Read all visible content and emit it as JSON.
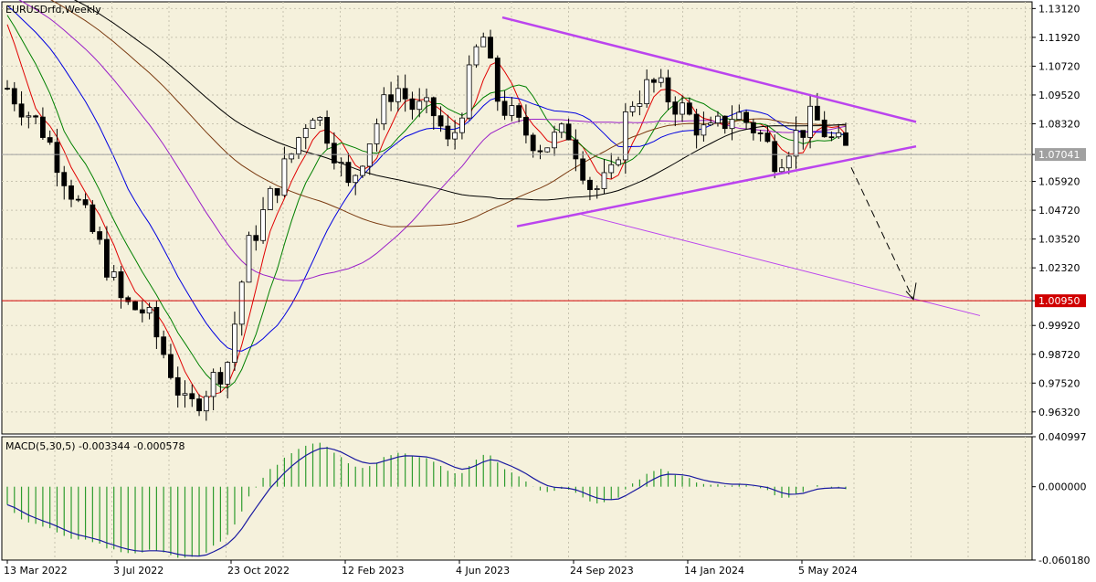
{
  "chart_data": {
    "type": "candlestick",
    "title": "EURUSDrfd,Weekly",
    "timeframe": "Weekly",
    "price_axis": {
      "range": [
        0.954,
        1.134
      ],
      "ticks": [
        "1.13120",
        "1.11920",
        "1.10720",
        "1.09520",
        "1.08320",
        "1.07041",
        "1.05920",
        "1.04720",
        "1.03520",
        "1.02320",
        "1.00950",
        "0.99920",
        "0.98720",
        "0.97520",
        "0.96320"
      ],
      "current_price_label": "1.07041",
      "target_price_label": "1.00950"
    },
    "date_axis": {
      "labels": [
        "13 Mar 2022",
        "3 Jul 2022",
        "23 Oct 2022",
        "12 Feb 2023",
        "4 Jun 2023",
        "24 Sep 2023",
        "14 Jan 2024",
        "5 May 2024"
      ]
    },
    "indicator": {
      "label": "MACD(5,30,5) -0.003344 -0.000578",
      "ticks": [
        "0.040997",
        "0.000000",
        "-0.060180"
      ],
      "range": [
        -0.0602,
        0.041
      ]
    },
    "colors": {
      "background": "#f5f1dc",
      "bull": "#ffffff",
      "bear": "#000000",
      "ma_fast": "#e00000",
      "ma_mid": "#008000",
      "ma_slow": "#0000e0",
      "ma_violet": "#9a1fc8",
      "ma_brown": "#7a3a10",
      "ma_black": "#000000",
      "triangle": "#bb44ee",
      "target_line": "#d00000",
      "macd_hist": "#2e9c2e",
      "macd_signal": "#1a1aa0"
    }
  }
}
